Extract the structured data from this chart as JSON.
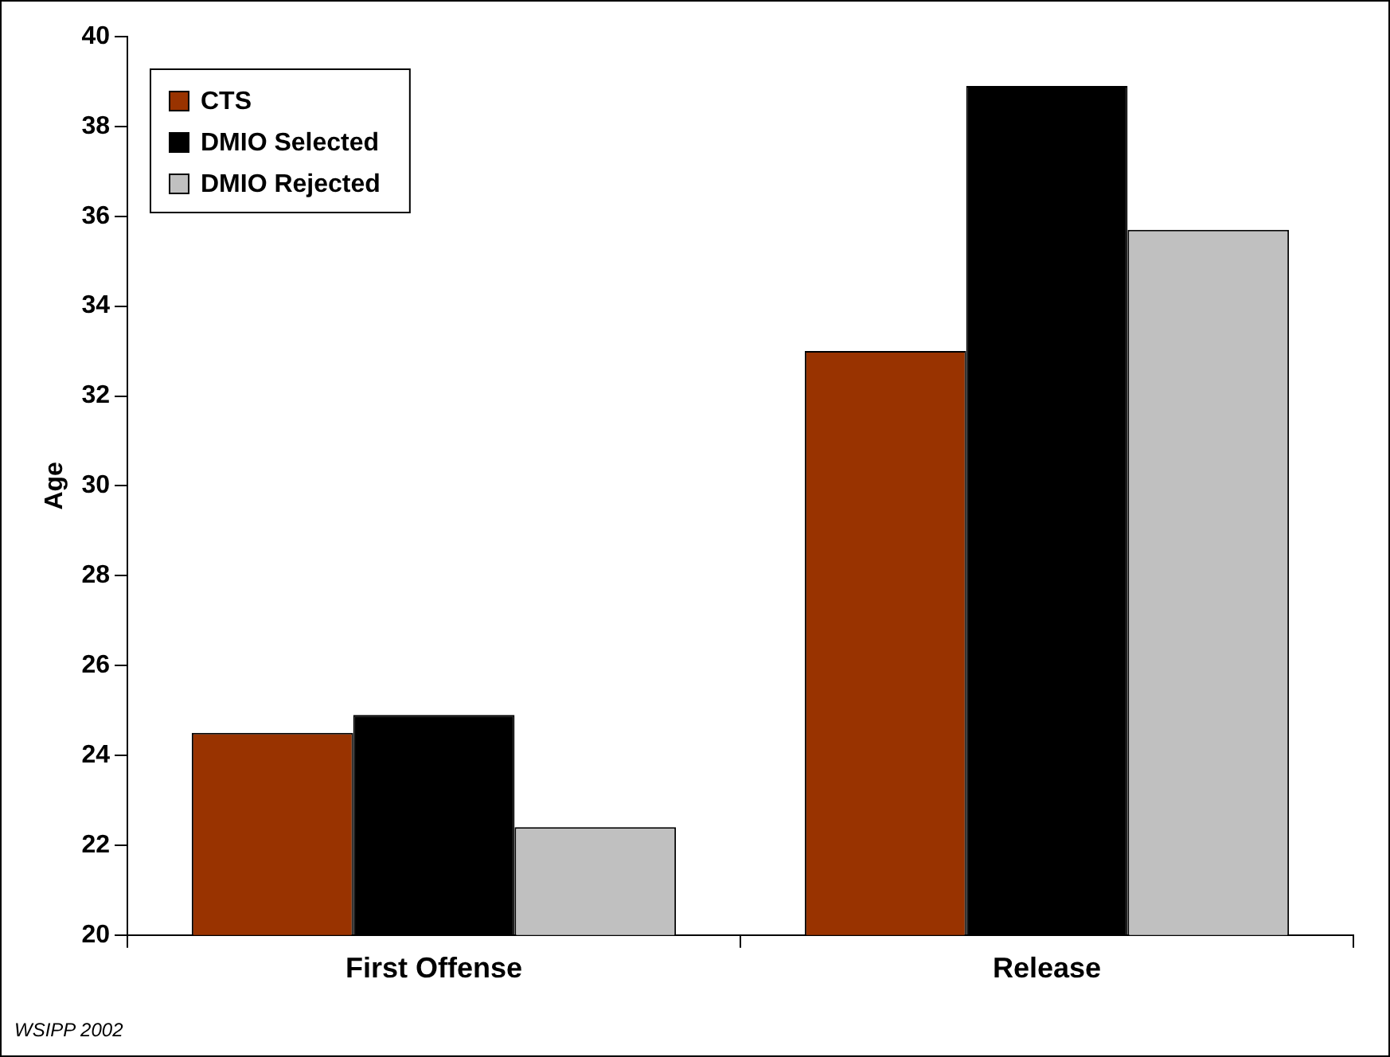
{
  "chart_data": {
    "type": "bar",
    "ylabel": "Age",
    "categories": [
      "First Offense",
      "Release"
    ],
    "series": [
      {
        "name": "CTS",
        "color": "#993300",
        "values": [
          24.5,
          33.0
        ]
      },
      {
        "name": "DMIO Selected",
        "color": "#000000",
        "values": [
          24.9,
          38.9
        ]
      },
      {
        "name": "DMIO Rejected",
        "color": "#c0c0c0",
        "values": [
          22.4,
          35.7
        ]
      }
    ],
    "ylim": [
      20,
      40
    ],
    "yticks": [
      20,
      22,
      24,
      26,
      28,
      30,
      32,
      34,
      36,
      38,
      40
    ],
    "grid": false,
    "legend": "top left",
    "annotations": [
      "WSIPP 2002"
    ]
  }
}
